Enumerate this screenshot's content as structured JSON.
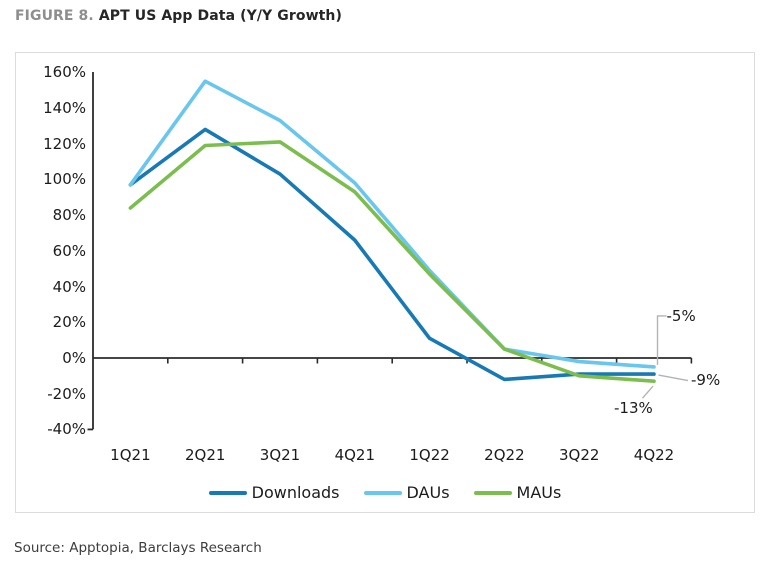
{
  "title": {
    "figure_label": "FIGURE 8.",
    "heading": "APT US App Data (Y/Y Growth)"
  },
  "source": "Source: Apptopia, Barclays Research",
  "colors": {
    "downloads": "#1779b5",
    "daus": "#68c6ef",
    "maus": "#7cbe4e",
    "axis": "#2b2b2b",
    "leader": "#b3b3b3",
    "tick_text": "#1c1c1c"
  },
  "chart_data": {
    "type": "line",
    "title": "APT US App Data (Y/Y Growth)",
    "categories": [
      "1Q21",
      "2Q21",
      "3Q21",
      "4Q21",
      "1Q22",
      "2Q22",
      "3Q22",
      "4Q22"
    ],
    "series": [
      {
        "name": "Downloads",
        "color_key": "downloads",
        "values": [
          97,
          128,
          103,
          66,
          11,
          -12,
          -9,
          -9
        ]
      },
      {
        "name": "DAUs",
        "color_key": "daus",
        "values": [
          97,
          155,
          133,
          98,
          49,
          5,
          -2,
          -5
        ]
      },
      {
        "name": "MAUs",
        "color_key": "maus",
        "values": [
          84,
          119,
          121,
          93,
          47,
          5,
          -10,
          -13
        ]
      }
    ],
    "yticks": [
      160,
      140,
      120,
      100,
      80,
      60,
      40,
      20,
      0,
      -20,
      -40
    ],
    "ytick_suffix": "%",
    "ylim": [
      -40,
      160
    ],
    "xlabel": "",
    "ylabel": "",
    "grid": false,
    "legend_position": "bottom",
    "annotations": [
      {
        "text": "-5%",
        "series": "DAUs"
      },
      {
        "text": "-9%",
        "series": "Downloads"
      },
      {
        "text": "-13%",
        "series": "MAUs"
      }
    ]
  }
}
